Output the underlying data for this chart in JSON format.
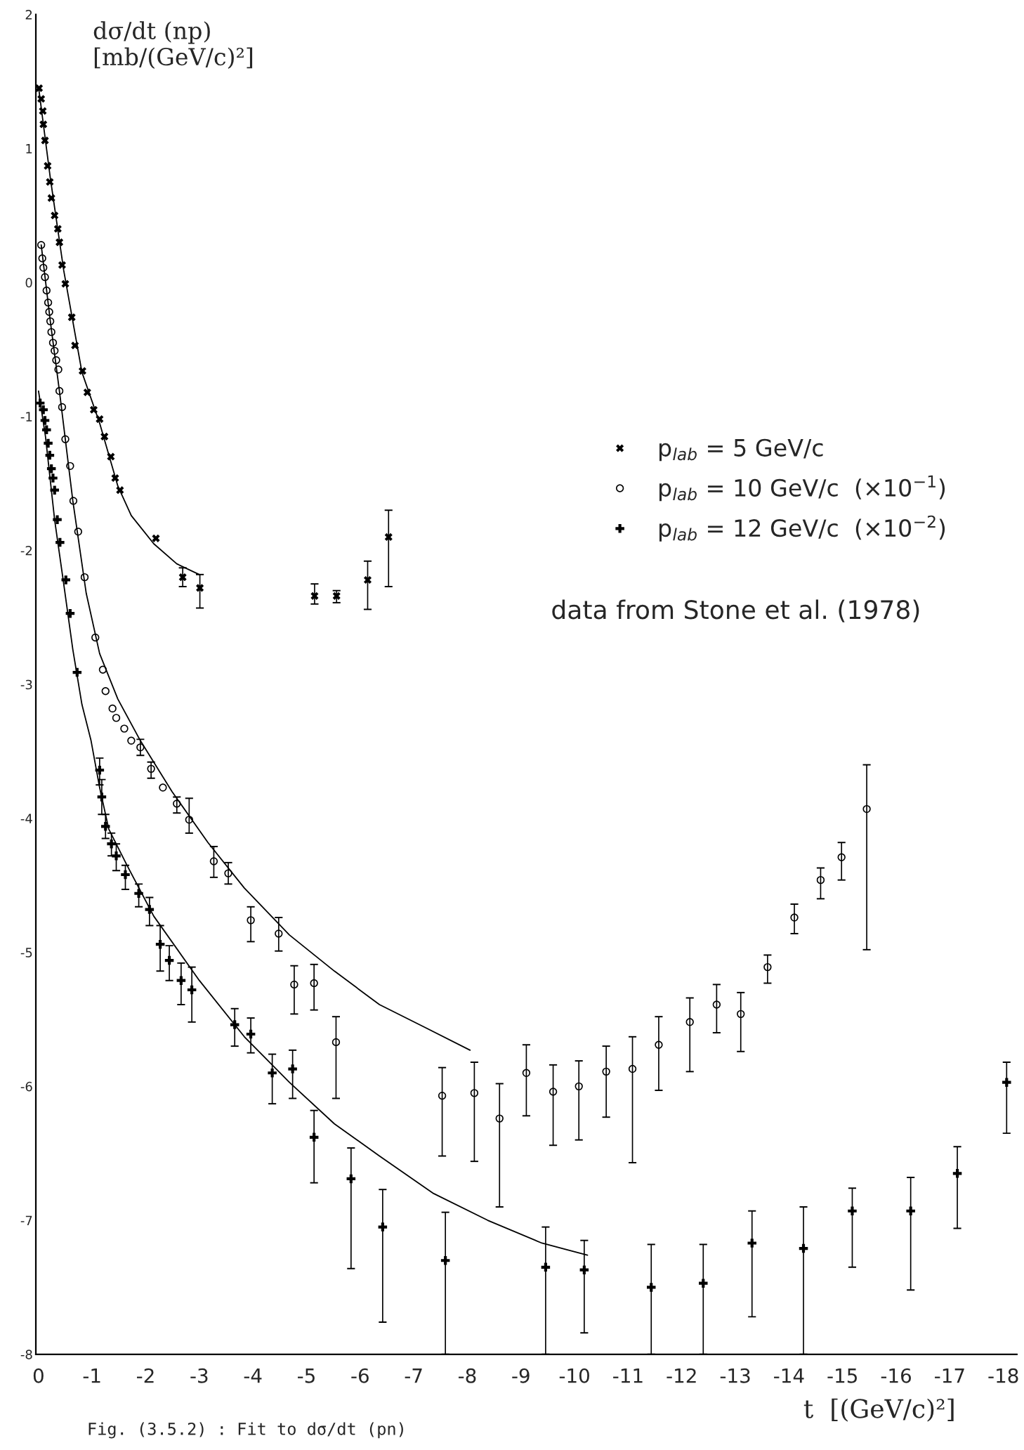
{
  "chart_data": {
    "type": "scatter",
    "ylabel": "dσ/dt (np)\n[mb/(GeV/c)²]",
    "xlabel": "t  [(GeV/c)²]",
    "annotations": [
      "data from Stone et al. (1978)",
      "Fig. (3.5.2) : Fit to dσ/dt (pn)"
    ],
    "grid": false,
    "legend": "right",
    "xlim": [
      0.05,
      -18.25
    ],
    "xticks": [
      0,
      -1,
      -2,
      -3,
      -4,
      -5,
      -6,
      -7,
      -8,
      -9,
      -10,
      -11,
      -12,
      -13,
      -14,
      -15,
      -16,
      -17,
      -18
    ],
    "ylim": [
      -8,
      2
    ],
    "yticks": [
      2,
      1,
      0,
      -1,
      -2,
      -3,
      -4,
      -5,
      -6,
      -7,
      -8
    ],
    "series": [
      {
        "name": "p$_{lab}$ = 5 GeV/c",
        "type": "scatter",
        "marker": "cross",
        "color": "#000000",
        "x": [
          -0.01,
          -0.05,
          -0.08,
          -0.09,
          -0.12,
          -0.17,
          -0.21,
          -0.24,
          -0.3,
          -0.36,
          -0.39,
          -0.44,
          -0.5,
          -0.62,
          -0.68,
          -0.82,
          -0.91,
          -1.03,
          -1.14,
          -1.23,
          -1.35,
          -1.43,
          -1.52,
          -2.19,
          -2.69,
          -3.01,
          -5.15,
          -5.56,
          -6.14,
          -6.53
        ],
        "values": [
          1.45,
          1.37,
          1.28,
          1.18,
          1.06,
          0.87,
          0.75,
          0.63,
          0.5,
          0.4,
          0.3,
          0.13,
          -0.01,
          -0.26,
          -0.47,
          -0.66,
          -0.82,
          -0.95,
          -1.02,
          -1.15,
          -1.3,
          -1.46,
          -1.55,
          -1.91,
          -2.2,
          -2.28,
          -2.34,
          -2.34,
          -2.22,
          -1.9
        ],
        "errors": [
          null,
          null,
          null,
          null,
          null,
          null,
          null,
          null,
          null,
          null,
          null,
          null,
          null,
          null,
          null,
          null,
          null,
          null,
          null,
          null,
          null,
          null,
          null,
          null,
          [
            -2.27,
            -2.13
          ],
          [
            -2.43,
            -2.18
          ],
          [
            -2.4,
            -2.25
          ],
          [
            -2.39,
            -2.3
          ],
          [
            -2.44,
            -2.08
          ],
          [
            -2.27,
            -1.7
          ]
        ]
      },
      {
        "name": "p$_{lab}$ = 10 GeV/c  (×10$^{−1}$)",
        "type": "scatter",
        "marker": "circle",
        "color": "#000000",
        "x": [
          -0.05,
          -0.07,
          -0.09,
          -0.12,
          -0.15,
          -0.18,
          -0.2,
          -0.22,
          -0.24,
          -0.27,
          -0.3,
          -0.33,
          -0.37,
          -0.39,
          -0.44,
          -0.5,
          -0.59,
          -0.65,
          -0.74,
          -0.86,
          -1.06,
          -1.2,
          -1.25,
          -1.38,
          -1.45,
          -1.6,
          -1.73,
          -1.9,
          -2.1,
          -2.32,
          -2.58,
          -2.81,
          -3.27,
          -3.54,
          -3.96,
          -4.48,
          -4.77,
          -5.14,
          -5.55,
          -7.53,
          -8.13,
          -8.6,
          -9.1,
          -9.6,
          -10.08,
          -10.59,
          -11.08,
          -11.57,
          -12.15,
          -12.65,
          -13.1,
          -13.6,
          -14.1,
          -14.59,
          -14.98,
          -15.45
        ],
        "values": [
          0.28,
          0.18,
          0.11,
          0.04,
          -0.06,
          -0.15,
          -0.22,
          -0.29,
          -0.37,
          -0.45,
          -0.51,
          -0.58,
          -0.65,
          -0.81,
          -0.93,
          -1.17,
          -1.37,
          -1.63,
          -1.86,
          -2.2,
          -2.65,
          -2.89,
          -3.05,
          -3.18,
          -3.25,
          -3.33,
          -3.42,
          -3.47,
          -3.63,
          -3.77,
          -3.89,
          -4.01,
          -4.32,
          -4.41,
          -4.76,
          -4.86,
          -5.24,
          -5.23,
          -5.67,
          -6.07,
          -6.05,
          -6.24,
          -5.9,
          -6.04,
          -6.0,
          -5.89,
          -5.87,
          -5.69,
          -5.52,
          -5.39,
          -5.46,
          -5.11,
          -4.74,
          -4.46,
          -4.29,
          -3.93
        ],
        "errors": [
          null,
          null,
          null,
          null,
          null,
          null,
          null,
          null,
          null,
          null,
          null,
          null,
          null,
          null,
          null,
          null,
          null,
          null,
          null,
          null,
          null,
          null,
          null,
          null,
          null,
          null,
          null,
          [
            -3.53,
            -3.41
          ],
          [
            -3.7,
            -3.58
          ],
          null,
          [
            -3.96,
            -3.84
          ],
          [
            -4.11,
            -3.85
          ],
          [
            -4.44,
            -4.21
          ],
          [
            -4.49,
            -4.33
          ],
          [
            -4.92,
            -4.66
          ],
          [
            -4.99,
            -4.74
          ],
          [
            -5.46,
            -5.1
          ],
          [
            -5.43,
            -5.09
          ],
          [
            -6.09,
            -5.48
          ],
          [
            -6.52,
            -5.86
          ],
          [
            -6.56,
            -5.82
          ],
          [
            -6.9,
            -5.98
          ],
          [
            -6.22,
            -5.69
          ],
          [
            -6.44,
            -5.84
          ],
          [
            -6.4,
            -5.81
          ],
          [
            -6.23,
            -5.7
          ],
          [
            -6.57,
            -5.63
          ],
          [
            -6.03,
            -5.48
          ],
          [
            -5.89,
            -5.34
          ],
          [
            -5.6,
            -5.24
          ],
          [
            -5.74,
            -5.3
          ],
          [
            -5.23,
            -5.02
          ],
          [
            -4.86,
            -4.64
          ],
          [
            -4.6,
            -4.37
          ],
          [
            -4.46,
            -4.18
          ],
          [
            -4.98,
            -3.6
          ]
        ]
      },
      {
        "name": "p$_{lab}$ = 12 GeV/c  (×10$^{−2}$)",
        "type": "scatter",
        "marker": "plus",
        "color": "#000000",
        "x": [
          -0.03,
          -0.09,
          -0.12,
          -0.15,
          -0.18,
          -0.21,
          -0.24,
          -0.27,
          -0.3,
          -0.35,
          -0.4,
          -0.51,
          -0.59,
          -0.72,
          -1.14,
          -1.18,
          -1.25,
          -1.36,
          -1.45,
          -1.62,
          -1.87,
          -2.07,
          -2.27,
          -2.44,
          -2.66,
          -2.86,
          -3.66,
          -3.96,
          -4.36,
          -4.74,
          -5.14,
          -5.83,
          -6.42,
          -7.59,
          -9.46,
          -10.18,
          -11.43,
          -12.4,
          -13.31,
          -14.27,
          -15.18,
          -16.27,
          -17.14,
          -18.06
        ],
        "values": [
          -0.9,
          -0.95,
          -1.03,
          -1.1,
          -1.2,
          -1.29,
          -1.39,
          -1.46,
          -1.55,
          -1.77,
          -1.94,
          -2.22,
          -2.47,
          -2.91,
          -3.64,
          -3.84,
          -4.06,
          -4.19,
          -4.28,
          -4.42,
          -4.56,
          -4.68,
          -4.94,
          -5.06,
          -5.21,
          -5.28,
          -5.54,
          -5.61,
          -5.9,
          -5.87,
          -6.38,
          -6.69,
          -7.05,
          -7.3,
          -7.35,
          -7.37,
          -7.5,
          -7.47,
          -7.17,
          -7.21,
          -6.93,
          -6.93,
          -6.65,
          -5.97
        ],
        "errors": [
          null,
          null,
          null,
          null,
          null,
          null,
          null,
          null,
          null,
          null,
          null,
          null,
          null,
          null,
          [
            -3.75,
            -3.55
          ],
          [
            -3.97,
            -3.71
          ],
          [
            -4.15,
            -3.97
          ],
          [
            -4.28,
            -4.11
          ],
          [
            -4.39,
            -4.19
          ],
          [
            -4.53,
            -4.35
          ],
          [
            -4.66,
            -4.49
          ],
          [
            -4.8,
            -4.59
          ],
          [
            -5.14,
            -4.8
          ],
          [
            -5.21,
            -4.95
          ],
          [
            -5.39,
            -5.08
          ],
          [
            -5.52,
            -5.11
          ],
          [
            -5.7,
            -5.42
          ],
          [
            -5.75,
            -5.49
          ],
          [
            -6.13,
            -5.76
          ],
          [
            -6.09,
            -5.73
          ],
          [
            -6.72,
            -6.18
          ],
          [
            -7.36,
            -6.46
          ],
          [
            -7.76,
            -6.77
          ],
          [
            -8,
            -6.94
          ],
          [
            -8,
            -7.05
          ],
          [
            -7.84,
            -7.15
          ],
          [
            -8,
            -7.18
          ],
          [
            -8,
            -7.18
          ],
          [
            -7.72,
            -6.93
          ],
          [
            -8,
            -6.9
          ],
          [
            -7.35,
            -6.76
          ],
          [
            -7.52,
            -6.68
          ],
          [
            -7.06,
            -6.45
          ],
          [
            -6.35,
            -5.82
          ]
        ]
      },
      {
        "type": "line",
        "color": "#000000",
        "line_style": "solid",
        "x": [
          0,
          -0.22,
          -0.47,
          -0.81,
          -1.14,
          -1.48,
          -1.73,
          -2.15,
          -2.58,
          -3.0
        ],
        "values": [
          1.46,
          0.78,
          0.09,
          -0.67,
          -1.05,
          -1.52,
          -1.74,
          -1.95,
          -2.1,
          -2.18
        ]
      },
      {
        "type": "line",
        "color": "#000000",
        "line_style": "solid",
        "x": [
          -0.05,
          -0.22,
          -0.39,
          -0.64,
          -0.89,
          -1.14,
          -1.48,
          -1.9,
          -2.49,
          -3.16,
          -3.84,
          -4.68,
          -5.52,
          -6.36,
          -7.21,
          -8.05
        ],
        "values": [
          0.28,
          -0.29,
          -0.81,
          -1.63,
          -2.32,
          -2.77,
          -3.11,
          -3.42,
          -3.8,
          -4.18,
          -4.52,
          -4.87,
          -5.14,
          -5.39,
          -5.56,
          -5.73
        ]
      },
      {
        "type": "line",
        "color": "#000000",
        "line_style": "solid",
        "x": [
          0,
          -0.13,
          -0.3,
          -0.47,
          -0.64,
          -0.81,
          -0.98,
          -1.14,
          -1.31,
          -1.65,
          -2.15,
          -3.0,
          -3.84,
          -4.68,
          -5.52,
          -6.36,
          -7.37,
          -8.38,
          -9.39,
          -10.24
        ],
        "values": [
          -0.81,
          -1.15,
          -1.77,
          -2.25,
          -2.74,
          -3.15,
          -3.42,
          -3.77,
          -4.08,
          -4.35,
          -4.73,
          -5.21,
          -5.63,
          -5.97,
          -6.28,
          -6.52,
          -6.8,
          -7.0,
          -7.17,
          -7.26
        ]
      }
    ]
  }
}
